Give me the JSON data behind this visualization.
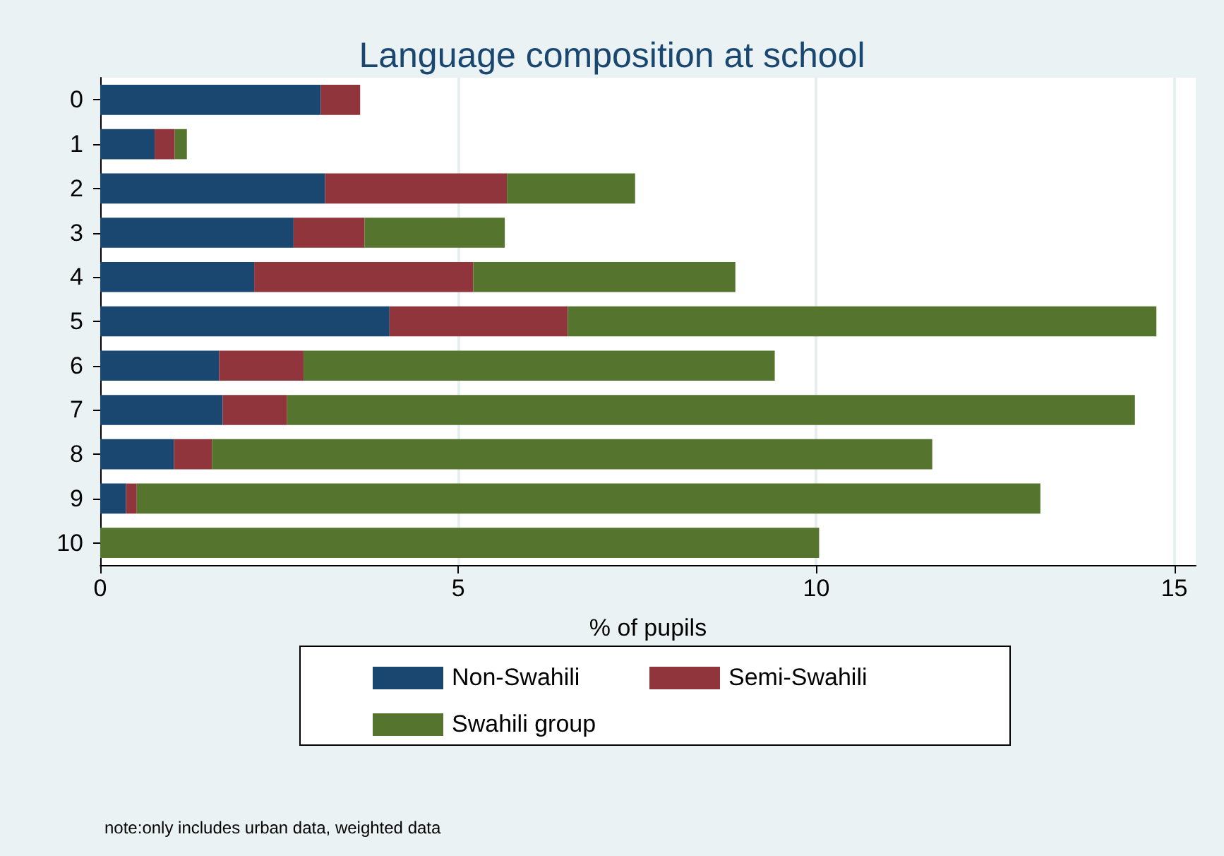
{
  "chart_data": {
    "type": "bar",
    "orientation": "horizontal",
    "stacked": true,
    "title": "Language composition at school",
    "xlabel": "% of pupils",
    "categories": [
      "0",
      "1",
      "2",
      "3",
      "4",
      "5",
      "6",
      "7",
      "8",
      "9",
      "10"
    ],
    "series": [
      {
        "name": "Non-Swahili",
        "color": "#1a476f",
        "values": [
          3.08,
          0.76,
          3.14,
          2.7,
          2.15,
          4.04,
          1.66,
          1.71,
          1.03,
          0.36,
          0
        ]
      },
      {
        "name": "Semi-Swahili",
        "color": "#90353b",
        "values": [
          0.55,
          0.28,
          2.54,
          0.99,
          3.06,
          2.49,
          1.18,
          0.9,
          0.53,
          0.15,
          0
        ]
      },
      {
        "name": "Swahili group",
        "color": "#55752f",
        "values": [
          0,
          0.17,
          1.79,
          1.96,
          3.66,
          8.22,
          6.58,
          11.84,
          10.06,
          12.62,
          10.04
        ]
      }
    ],
    "xlim": [
      0,
      15.3
    ],
    "xticks": [
      0,
      5,
      10,
      15
    ],
    "grid": "x",
    "legend": "bottom",
    "annotations": [
      "note:only includes urban data, weighted data"
    ]
  }
}
